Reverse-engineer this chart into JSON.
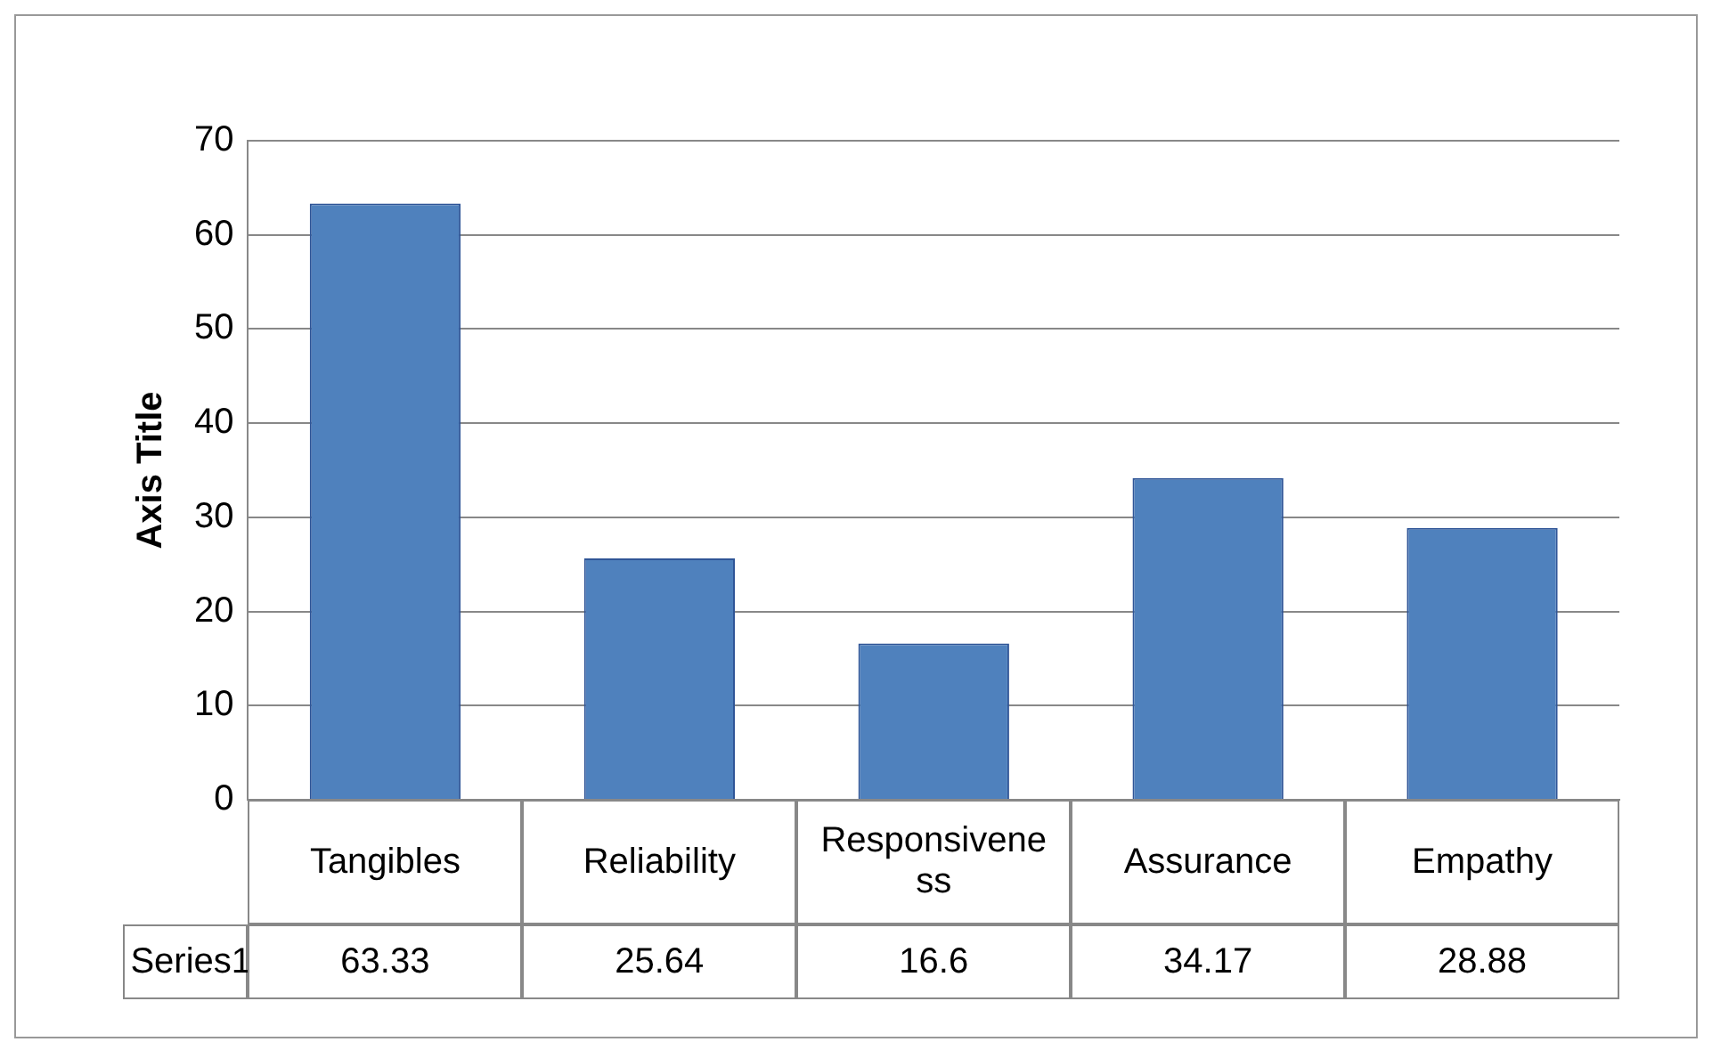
{
  "chart_data": {
    "type": "bar",
    "ylabel": "Axis Title",
    "categories": [
      "Tangibles",
      "Reliability",
      "Responsiveness",
      "Assurance",
      "Empathy"
    ],
    "series": [
      {
        "name": "Series1",
        "color": "#4f81bd",
        "values": [
          63.33,
          25.64,
          16.6,
          34.17,
          28.88
        ]
      }
    ],
    "ylim": [
      0,
      70
    ],
    "yticks": [
      0,
      10,
      20,
      30,
      40,
      50,
      60,
      70
    ],
    "grid": "y",
    "legend": "bottom",
    "data_labels": true
  }
}
